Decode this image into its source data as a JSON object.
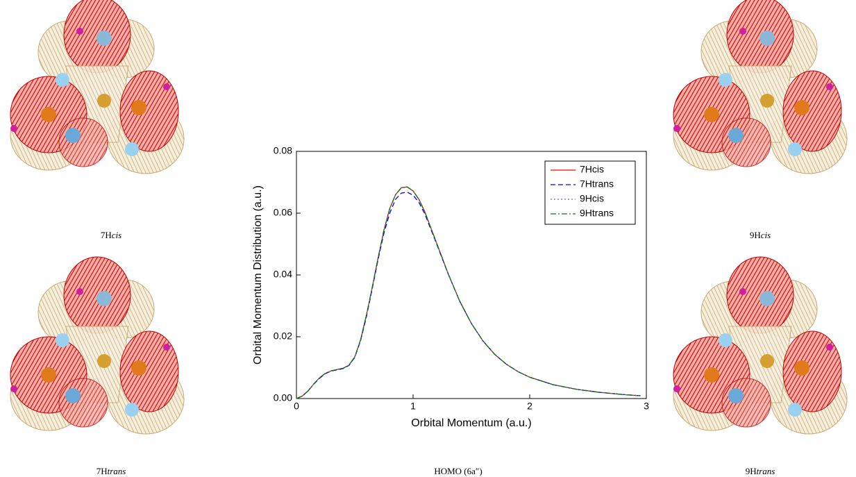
{
  "chart_data": {
    "type": "line",
    "xlabel": "Orbital Momentum (a.u.)",
    "ylabel": "Orbital Momentum Distribution (a.u.)",
    "caption": "HOMO (6a″)",
    "xlim": [
      0,
      3
    ],
    "ylim": [
      0,
      0.08
    ],
    "xticks": [
      0,
      1,
      2,
      3
    ],
    "yticks": [
      {
        "value": 0,
        "label": "0.00"
      },
      {
        "value": 0.02,
        "label": "0.02"
      },
      {
        "value": 0.04,
        "label": "0.04"
      },
      {
        "value": 0.06,
        "label": "0.06"
      },
      {
        "value": 0.08,
        "label": "0.08"
      }
    ],
    "legend": "upper right",
    "x": [
      0,
      0.05,
      0.1,
      0.15,
      0.2,
      0.25,
      0.3,
      0.35,
      0.4,
      0.45,
      0.5,
      0.55,
      0.6,
      0.65,
      0.7,
      0.75,
      0.8,
      0.85,
      0.9,
      0.95,
      1.0,
      1.05,
      1.1,
      1.2,
      1.3,
      1.4,
      1.5,
      1.6,
      1.7,
      1.8,
      1.9,
      2.0,
      2.2,
      2.4,
      2.6,
      2.8,
      2.95
    ],
    "series": [
      {
        "name": "7Hcis",
        "color": "#ff0000",
        "style": "solid",
        "values": [
          0,
          0.0008,
          0.0025,
          0.0048,
          0.0068,
          0.0082,
          0.009,
          0.0094,
          0.0098,
          0.0108,
          0.0135,
          0.019,
          0.027,
          0.036,
          0.0455,
          0.0545,
          0.0615,
          0.066,
          0.0683,
          0.0685,
          0.0672,
          0.0645,
          0.0605,
          0.0505,
          0.0405,
          0.0315,
          0.0243,
          0.0186,
          0.0143,
          0.0111,
          0.0087,
          0.0069,
          0.0045,
          0.003,
          0.002,
          0.0013,
          0.0009
        ]
      },
      {
        "name": "7Htrans",
        "color": "#0000ff",
        "style": "dashed",
        "values": [
          0,
          0.0008,
          0.0025,
          0.0047,
          0.0066,
          0.0081,
          0.0089,
          0.0093,
          0.0097,
          0.0107,
          0.0133,
          0.0187,
          0.0265,
          0.0355,
          0.045,
          0.0535,
          0.06,
          0.0645,
          0.0665,
          0.0668,
          0.0658,
          0.0635,
          0.0598,
          0.0502,
          0.0404,
          0.0315,
          0.0243,
          0.0186,
          0.0143,
          0.0111,
          0.0087,
          0.0069,
          0.0045,
          0.003,
          0.002,
          0.0013,
          0.0009
        ]
      },
      {
        "name": "9Hcis",
        "color": "#7a6a9a",
        "style": "dotted",
        "values": [
          0,
          0.0008,
          0.0025,
          0.0048,
          0.0068,
          0.0082,
          0.009,
          0.0094,
          0.0098,
          0.0108,
          0.0135,
          0.019,
          0.027,
          0.036,
          0.0455,
          0.0545,
          0.0614,
          0.0659,
          0.0682,
          0.0684,
          0.0671,
          0.0644,
          0.0604,
          0.0505,
          0.0405,
          0.0315,
          0.0243,
          0.0186,
          0.0143,
          0.0111,
          0.0087,
          0.0069,
          0.0045,
          0.003,
          0.002,
          0.0013,
          0.0009
        ]
      },
      {
        "name": "9Htrans",
        "color": "#008000",
        "style": "dashdot",
        "values": [
          0,
          0.0008,
          0.0025,
          0.0048,
          0.0068,
          0.0082,
          0.009,
          0.0094,
          0.0098,
          0.0108,
          0.0135,
          0.019,
          0.027,
          0.036,
          0.0455,
          0.0545,
          0.0615,
          0.066,
          0.0682,
          0.0685,
          0.0672,
          0.0645,
          0.0605,
          0.0505,
          0.0405,
          0.0315,
          0.0243,
          0.0186,
          0.0143,
          0.0111,
          0.0087,
          0.0069,
          0.0045,
          0.003,
          0.002,
          0.0013,
          0.0009
        ]
      }
    ]
  },
  "images": [
    {
      "main": "7H",
      "italic": "cis"
    },
    {
      "main": "7H",
      "italic": "trans"
    },
    {
      "main": "9H",
      "italic": "cis"
    },
    {
      "main": "9H",
      "italic": "trans"
    }
  ]
}
